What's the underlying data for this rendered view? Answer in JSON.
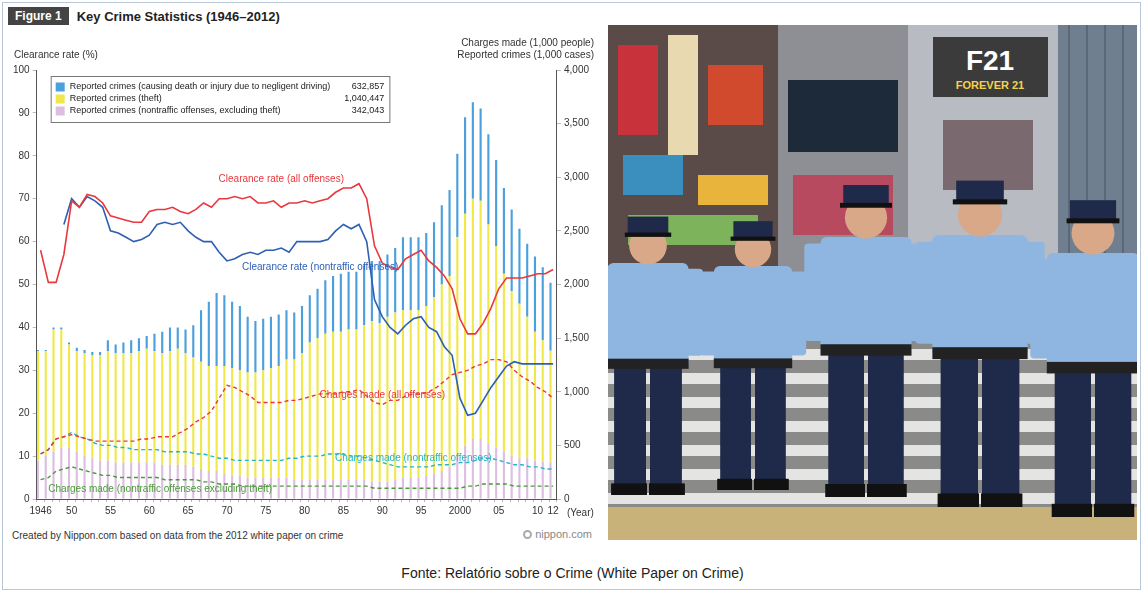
{
  "chart_data": {
    "type": "bar",
    "figure_label": "Figure 1",
    "title": "Key Crime Statistics (1946–2012)",
    "ylabel": "Clearance rate (%)",
    "y2label": [
      "Charges made (1,000 people)",
      "Reported crimes (1,000 cases)"
    ],
    "xlabel": "(Year)",
    "note": "Created by Nippon.com based on data from the 2012 white paper on crime",
    "logo": "nippon.com",
    "stacked": true,
    "grid": false,
    "legend": "upper left",
    "categories": [
      "1946",
      null,
      null,
      null,
      "50",
      null,
      null,
      null,
      null,
      "55",
      null,
      null,
      null,
      null,
      "60",
      null,
      null,
      null,
      null,
      "65",
      null,
      null,
      null,
      null,
      "70",
      null,
      null,
      null,
      null,
      "75",
      null,
      null,
      null,
      null,
      "80",
      null,
      null,
      null,
      null,
      "85",
      null,
      null,
      null,
      null,
      "90",
      null,
      null,
      null,
      null,
      "95",
      null,
      null,
      null,
      null,
      "2000",
      null,
      null,
      null,
      null,
      "05",
      null,
      null,
      null,
      null,
      "10",
      null,
      "12"
    ],
    "ylim": [
      0,
      100
    ],
    "yticks": [
      0,
      10,
      20,
      30,
      40,
      50,
      60,
      70,
      80,
      90,
      100
    ],
    "y2lim": [
      0,
      4000
    ],
    "y2ticks": [
      0,
      500,
      {
        "value": 1000,
        "label": "1,000"
      },
      {
        "value": 1500,
        "label": "1,500"
      },
      {
        "value": 2000,
        "label": "2,000"
      },
      {
        "value": 2500,
        "label": "2,500"
      },
      {
        "value": 3000,
        "label": "3,000"
      },
      {
        "value": 3500,
        "label": "3,500"
      },
      {
        "value": 4000,
        "label": "4,000"
      }
    ],
    "series": [
      {
        "name": "Reported crimes (causing death or injury due to negligent driving)",
        "type": "bar",
        "axis": "y2",
        "color": "#4a9fdc",
        "legend_value": {
          "value": 632.857,
          "label": "632,857"
        },
        "values": [
          10,
          10,
          20,
          20,
          20,
          30,
          30,
          30,
          30,
          100,
          80,
          100,
          120,
          120,
          120,
          160,
          200,
          220,
          200,
          220,
          300,
          480,
          600,
          680,
          660,
          620,
          600,
          520,
          480,
          480,
          480,
          480,
          460,
          440,
          440,
          440,
          460,
          500,
          520,
          540,
          540,
          540,
          560,
          560,
          580,
          580,
          600,
          680,
          680,
          680,
          680,
          700,
          740,
          800,
          780,
          900,
          900,
          860,
          840,
          800,
          800,
          760,
          700,
          680,
          700,
          680,
          632.857
        ]
      },
      {
        "name": "Reported crimes (theft)",
        "type": "bar",
        "axis": "y2",
        "color": "#f0e84a",
        "legend_value": {
          "value": 1040.447,
          "label": "1,040,447"
        },
        "values": [
          1020,
          980,
          1140,
          1100,
          960,
          940,
          960,
          960,
          980,
          1020,
          1020,
          1020,
          1020,
          1040,
          1060,
          1040,
          1040,
          1060,
          1080,
          1040,
          1020,
          1000,
          980,
          980,
          1000,
          1000,
          980,
          980,
          980,
          1000,
          1020,
          1040,
          1100,
          1120,
          1180,
          1280,
          1320,
          1360,
          1380,
          1380,
          1400,
          1400,
          1440,
          1500,
          1480,
          1540,
          1560,
          1560,
          1560,
          1560,
          1580,
          1640,
          1740,
          1780,
          2040,
          2160,
          2240,
          2220,
          2040,
          1880,
          1660,
          1540,
          1440,
          1320,
          1200,
          1130,
          1040.447
        ]
      },
      {
        "name": "Reported crimes (nontraffic offenses, excluding theft)",
        "type": "bar",
        "axis": "y2",
        "color": "#dcbfe0",
        "legend_value": {
          "value": 342.043,
          "label": "342,043"
        },
        "values": [
          360,
          400,
          440,
          480,
          480,
          440,
          400,
          380,
          360,
          360,
          340,
          340,
          340,
          340,
          340,
          340,
          320,
          320,
          320,
          320,
          300,
          280,
          260,
          260,
          240,
          220,
          220,
          200,
          200,
          200,
          200,
          200,
          200,
          180,
          180,
          180,
          180,
          180,
          180,
          180,
          180,
          180,
          180,
          160,
          160,
          160,
          180,
          200,
          200,
          200,
          220,
          240,
          260,
          300,
          400,
          500,
          560,
          560,
          520,
          480,
          440,
          400,
          380,
          380,
          360,
          350,
          342.043
        ]
      },
      {
        "name": "Clearance rate (all offenses)",
        "type": "line",
        "axis": "y",
        "color": "#e8383d",
        "line_style": "solid",
        "values": [
          58,
          50.5,
          50.5,
          57,
          69.5,
          68,
          71,
          70.5,
          69,
          66,
          65.5,
          65,
          64.5,
          64.5,
          67,
          67.5,
          67.5,
          68,
          67,
          66.5,
          67.5,
          69,
          68,
          70,
          70,
          70.5,
          70,
          70.5,
          69,
          69,
          69.5,
          68,
          69,
          69,
          69.5,
          69,
          69.5,
          70,
          71.5,
          72.5,
          72.5,
          73.5,
          70,
          59,
          55,
          54,
          53.5,
          56,
          57,
          58,
          55.5,
          54,
          52,
          49,
          42,
          38.5,
          38.5,
          41,
          44.5,
          49,
          51.5,
          51.5,
          51.5,
          52,
          52.5,
          52.5,
          53.5
        ]
      },
      {
        "name": "Clearance rate (nontraffic offenses)",
        "type": "line",
        "axis": "y",
        "color": "#2d5fb3",
        "line_style": "solid",
        "values": [
          null,
          null,
          null,
          64,
          70,
          68,
          70.5,
          69.5,
          68,
          62.5,
          62,
          61,
          60,
          60.5,
          61.5,
          64,
          64.5,
          64,
          64.5,
          62.5,
          61,
          60,
          60,
          57.5,
          55.5,
          56,
          57,
          57.5,
          57,
          58,
          58,
          58.5,
          57.5,
          60,
          60,
          60,
          60,
          60.5,
          62.5,
          64,
          63,
          64,
          60,
          46.5,
          42.5,
          40,
          38.5,
          40.5,
          42,
          42.5,
          40,
          39,
          35.5,
          33.5,
          23.5,
          19.5,
          20,
          23,
          26,
          28.5,
          31,
          32,
          31.5,
          31.5,
          31.5,
          31.5,
          31.5
        ]
      },
      {
        "name": "Charges made (all offenses)",
        "type": "line",
        "axis": "y2",
        "color": "#e8383d",
        "line_style": "dashed",
        "values": [
          420,
          460,
          560,
          580,
          600,
          580,
          560,
          540,
          540,
          540,
          540,
          540,
          540,
          560,
          560,
          580,
          580,
          580,
          620,
          660,
          720,
          760,
          820,
          940,
          1060,
          1040,
          1000,
          960,
          900,
          900,
          900,
          900,
          920,
          920,
          940,
          960,
          980,
          980,
          980,
          1000,
          1000,
          1020,
          960,
          900,
          880,
          920,
          920,
          960,
          980,
          980,
          1000,
          1040,
          1100,
          1160,
          1180,
          1200,
          1240,
          1260,
          1300,
          1300,
          1280,
          1200,
          1140,
          1100,
          1040,
          1000,
          940
        ]
      },
      {
        "name": "Charges made (nontraffic offenses)",
        "type": "line",
        "axis": "y2",
        "color": "#28b4c8",
        "line_style": "dashed",
        "values": [
          420,
          460,
          560,
          580,
          620,
          580,
          560,
          520,
          500,
          500,
          480,
          480,
          460,
          460,
          460,
          460,
          440,
          440,
          440,
          440,
          420,
          420,
          400,
          380,
          380,
          360,
          360,
          360,
          360,
          360,
          360,
          360,
          380,
          380,
          400,
          400,
          400,
          420,
          420,
          420,
          400,
          400,
          380,
          360,
          340,
          320,
          300,
          300,
          300,
          300,
          300,
          320,
          320,
          320,
          340,
          340,
          360,
          380,
          380,
          360,
          340,
          320,
          320,
          300,
          300,
          280,
          280
        ]
      },
      {
        "name": "Charges made (nontraffic offenses excluding theft)",
        "type": "line",
        "axis": "y2",
        "color": "#4a9a3a",
        "line_style": "dashed",
        "values": [
          180,
          200,
          260,
          280,
          300,
          280,
          260,
          240,
          220,
          220,
          200,
          200,
          200,
          200,
          200,
          200,
          180,
          180,
          180,
          180,
          180,
          160,
          160,
          140,
          140,
          140,
          120,
          120,
          120,
          120,
          120,
          120,
          120,
          120,
          120,
          120,
          120,
          120,
          120,
          120,
          120,
          120,
          120,
          100,
          100,
          100,
          100,
          100,
          100,
          100,
          100,
          100,
          100,
          100,
          100,
          120,
          120,
          140,
          140,
          140,
          140,
          120,
          120,
          120,
          120,
          120,
          120
        ]
      }
    ]
  },
  "photo": {
    "signs": [
      "F21",
      "FOREVER 21"
    ]
  },
  "caption": "Fonte: Relatório sobre o Crime (White Paper on Crime)"
}
